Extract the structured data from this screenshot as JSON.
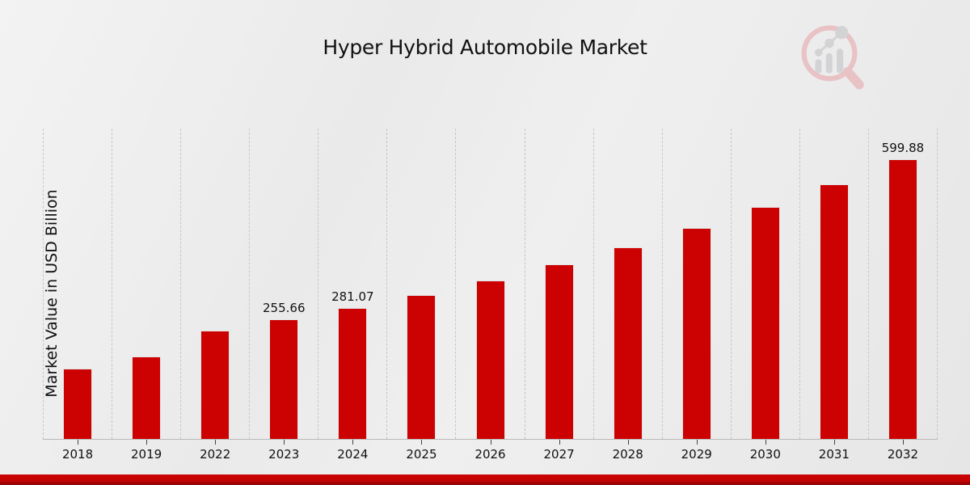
{
  "page": {
    "title": "Hyper Hybrid Automobile Market"
  },
  "branding": {
    "logo_name": "magnifier-growth-chart-watermark"
  },
  "colors": {
    "bar": "#cc0101",
    "background": "#ebebeb",
    "gridline": "#c6c6c6",
    "text": "#111111",
    "accent_strip_top": "#c40303",
    "accent_strip_bottom": "#8a0c0c",
    "logo_ring": "#e8c2c4",
    "logo_bars": "#d3d3d5"
  },
  "chart_data": {
    "type": "bar",
    "title": "Hyper Hybrid Automobile Market",
    "xlabel": "",
    "ylabel": "Market Value in USD Billion",
    "ylim": [
      0,
      665
    ],
    "grid": "vertical dashed separators between year columns, no horizontal gridlines, no y-axis tick labels",
    "legend": "none",
    "bar_color": "#cc0101",
    "categories": [
      "2018",
      "2019",
      "2022",
      "2023",
      "2024",
      "2025",
      "2026",
      "2027",
      "2028",
      "2029",
      "2030",
      "2031",
      "2032"
    ],
    "values": [
      150.4,
      176.4,
      232.55,
      255.66,
      281.07,
      308.99,
      339.69,
      373.45,
      410.56,
      451.34,
      496.18,
      545.48,
      599.88
    ],
    "value_labels": {
      "2023": "255.66",
      "2024": "281.07",
      "2032": "599.88"
    },
    "notes": "Only 2023, 2024 and 2032 carry printed data labels; other values estimated from bar heights (~9.9% CAGR growth)."
  }
}
